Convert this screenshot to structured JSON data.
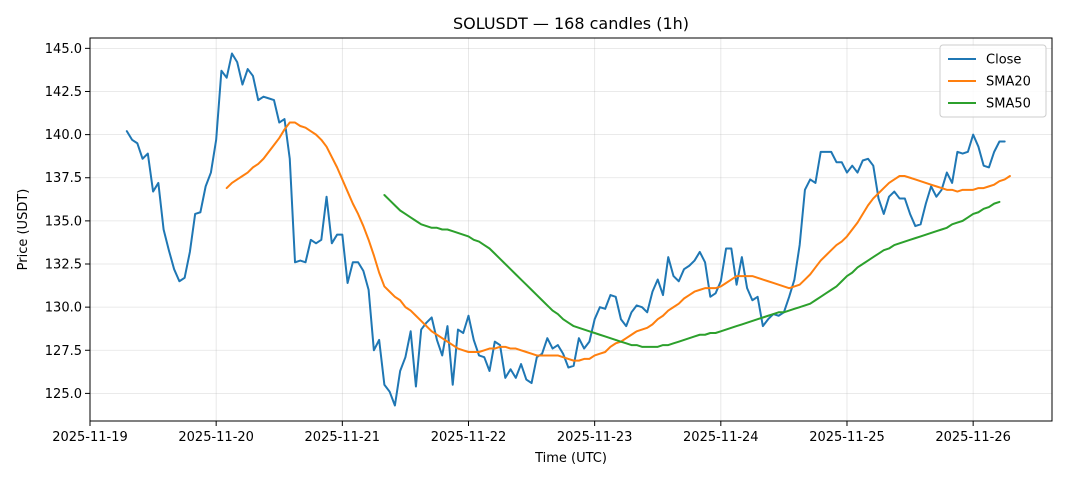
{
  "chart_data": {
    "type": "line",
    "title": "SOLUSDT — 168 candles (1h)",
    "xlabel": "Time (UTC)",
    "ylabel": "Price (USDT)",
    "x_ticks": [
      "2025-11-19",
      "2025-11-20",
      "2025-11-21",
      "2025-11-22",
      "2025-11-23",
      "2025-11-24",
      "2025-11-25",
      "2025-11-26"
    ],
    "y_ticks": [
      "125.0",
      "127.5",
      "130.0",
      "132.5",
      "135.0",
      "137.5",
      "140.0",
      "142.5",
      "145.0"
    ],
    "xlim": [
      "2025-11-19T00:00",
      "2025-11-26T15:00"
    ],
    "ylim": [
      123.4,
      145.6
    ],
    "grid": true,
    "legend_position": "top-right",
    "start": "2025-11-19T07:00",
    "step_hours": 1,
    "series": [
      {
        "name": "Close",
        "color": "#1f77b4",
        "values": [
          140.2,
          139.7,
          139.5,
          138.6,
          138.9,
          136.7,
          137.2,
          134.5,
          133.3,
          132.2,
          131.5,
          131.7,
          133.2,
          135.4,
          135.5,
          137.0,
          137.8,
          139.7,
          143.7,
          143.3,
          144.7,
          144.2,
          142.9,
          143.8,
          143.4,
          142.0,
          142.2,
          142.1,
          142.0,
          140.7,
          140.9,
          138.6,
          132.6,
          132.7,
          132.6,
          133.9,
          133.7,
          133.9,
          136.4,
          133.7,
          134.2,
          134.2,
          131.4,
          132.6,
          132.6,
          132.1,
          131.0,
          127.5,
          128.1,
          125.5,
          125.1,
          124.3,
          126.3,
          127.1,
          128.6,
          125.4,
          128.7,
          129.1,
          129.4,
          128.1,
          127.2,
          128.9,
          125.5,
          128.7,
          128.5,
          129.5,
          128.1,
          127.2,
          127.1,
          126.3,
          128.0,
          127.8,
          125.9,
          126.4,
          125.9,
          126.7,
          125.8,
          125.6,
          127.1,
          127.3,
          128.2,
          127.6,
          127.8,
          127.3,
          126.5,
          126.6,
          128.2,
          127.6,
          128.0,
          129.3,
          130.0,
          129.9,
          130.7,
          130.6,
          129.3,
          128.9,
          129.7,
          130.1,
          130.0,
          129.7,
          130.9,
          131.6,
          130.7,
          132.9,
          131.8,
          131.5,
          132.2,
          132.4,
          132.7,
          133.2,
          132.6,
          130.6,
          130.8,
          131.5,
          133.4,
          133.4,
          131.3,
          132.9,
          131.1,
          130.4,
          130.6,
          128.9,
          129.3,
          129.6,
          129.5,
          129.7,
          130.6,
          131.6,
          133.6,
          136.8,
          137.4,
          137.2,
          139.0,
          139.0,
          139.0,
          138.4,
          138.4,
          137.8,
          138.2,
          137.8,
          138.5,
          138.6,
          138.2,
          136.3,
          135.4,
          136.4,
          136.7,
          136.3,
          136.3,
          135.4,
          134.7,
          134.8,
          136.0,
          137.0,
          136.4,
          136.8,
          137.8,
          137.2,
          139.0,
          138.9,
          139.0,
          140.0,
          139.3,
          138.2,
          138.1,
          139.0,
          139.6,
          139.6
        ]
      },
      {
        "name": "SMA20",
        "color": "#ff7f0e",
        "values": [
          null,
          null,
          null,
          null,
          null,
          null,
          null,
          null,
          null,
          null,
          null,
          null,
          null,
          null,
          null,
          null,
          null,
          null,
          null,
          136.9,
          137.2,
          137.4,
          137.6,
          137.8,
          138.1,
          138.3,
          138.6,
          139.0,
          139.4,
          139.8,
          140.3,
          140.7,
          140.7,
          140.5,
          140.4,
          140.2,
          140.0,
          139.7,
          139.3,
          138.7,
          138.1,
          137.4,
          136.7,
          136.0,
          135.4,
          134.7,
          133.9,
          133.0,
          132.0,
          131.2,
          130.9,
          130.6,
          130.4,
          130.0,
          129.8,
          129.5,
          129.2,
          128.9,
          128.6,
          128.4,
          128.2,
          128.0,
          127.8,
          127.6,
          127.5,
          127.4,
          127.4,
          127.4,
          127.5,
          127.6,
          127.6,
          127.7,
          127.7,
          127.6,
          127.6,
          127.5,
          127.4,
          127.3,
          127.2,
          127.2,
          127.2,
          127.2,
          127.2,
          127.1,
          127.0,
          126.9,
          126.9,
          127.0,
          127.0,
          127.2,
          127.3,
          127.4,
          127.7,
          127.9,
          128.0,
          128.2,
          128.4,
          128.6,
          128.7,
          128.8,
          129.0,
          129.3,
          129.5,
          129.8,
          130.0,
          130.2,
          130.5,
          130.7,
          130.9,
          131.0,
          131.1,
          131.1,
          131.1,
          131.2,
          131.4,
          131.6,
          131.8,
          131.8,
          131.8,
          131.8,
          131.7,
          131.6,
          131.5,
          131.4,
          131.3,
          131.2,
          131.1,
          131.2,
          131.3,
          131.6,
          131.9,
          132.3,
          132.7,
          133.0,
          133.3,
          133.6,
          133.8,
          134.1,
          134.5,
          134.9,
          135.4,
          135.9,
          136.3,
          136.6,
          136.9,
          137.2,
          137.4,
          137.6,
          137.6,
          137.5,
          137.4,
          137.3,
          137.2,
          137.1,
          137.0,
          136.9,
          136.8,
          136.8,
          136.7,
          136.8,
          136.8,
          136.8,
          136.9,
          136.9,
          137.0,
          137.1,
          137.3,
          137.4,
          137.6
        ]
      },
      {
        "name": "SMA50",
        "color": "#2ca02c",
        "values": [
          null,
          null,
          null,
          null,
          null,
          null,
          null,
          null,
          null,
          null,
          null,
          null,
          null,
          null,
          null,
          null,
          null,
          null,
          null,
          null,
          null,
          null,
          null,
          null,
          null,
          null,
          null,
          null,
          null,
          null,
          null,
          null,
          null,
          null,
          null,
          null,
          null,
          null,
          null,
          null,
          null,
          null,
          null,
          null,
          null,
          null,
          null,
          null,
          null,
          136.5,
          136.2,
          135.9,
          135.6,
          135.4,
          135.2,
          135.0,
          134.8,
          134.7,
          134.6,
          134.6,
          134.5,
          134.5,
          134.4,
          134.3,
          134.2,
          134.1,
          133.9,
          133.8,
          133.6,
          133.4,
          133.1,
          132.8,
          132.5,
          132.2,
          131.9,
          131.6,
          131.3,
          131.0,
          130.7,
          130.4,
          130.1,
          129.8,
          129.6,
          129.3,
          129.1,
          128.9,
          128.8,
          128.7,
          128.6,
          128.5,
          128.4,
          128.3,
          128.2,
          128.1,
          128.0,
          127.9,
          127.8,
          127.8,
          127.7,
          127.7,
          127.7,
          127.7,
          127.8,
          127.8,
          127.9,
          128.0,
          128.1,
          128.2,
          128.3,
          128.4,
          128.4,
          128.5,
          128.5,
          128.6,
          128.7,
          128.8,
          128.9,
          129.0,
          129.1,
          129.2,
          129.3,
          129.4,
          129.5,
          129.6,
          129.7,
          129.7,
          129.8,
          129.9,
          130.0,
          130.1,
          130.2,
          130.4,
          130.6,
          130.8,
          131.0,
          131.2,
          131.5,
          131.8,
          132.0,
          132.3,
          132.5,
          132.7,
          132.9,
          133.1,
          133.3,
          133.4,
          133.6,
          133.7,
          133.8,
          133.9,
          134.0,
          134.1,
          134.2,
          134.3,
          134.4,
          134.5,
          134.6,
          134.8,
          134.9,
          135.0,
          135.2,
          135.4,
          135.5,
          135.7,
          135.8,
          136.0,
          136.1
        ]
      }
    ]
  }
}
